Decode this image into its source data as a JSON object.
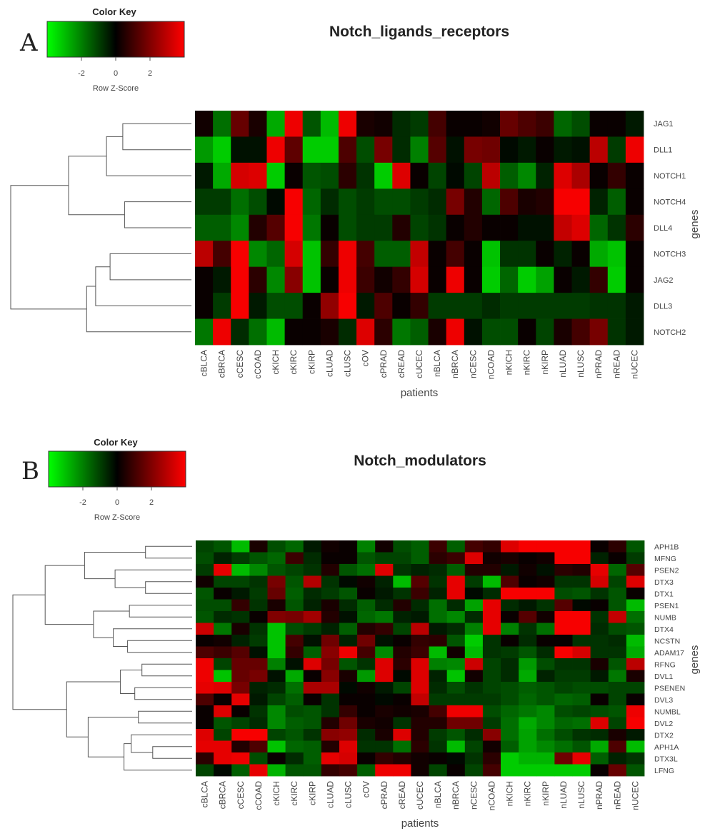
{
  "figure": {
    "panels": [
      {
        "letter": "A",
        "title": "Notch_ligands_receptors",
        "key": {
          "title": "Color Key",
          "xlabel": "Row Z-Score",
          "ticks": [
            "-2",
            "0",
            "2"
          ]
        },
        "ylabel": "genes",
        "xlabel": "patients"
      },
      {
        "letter": "B",
        "title": "Notch_modulators",
        "key": {
          "title": "Color Key",
          "xlabel": "Row Z-Score",
          "ticks": [
            "-2",
            "0",
            "2"
          ]
        },
        "ylabel": "genes",
        "xlabel": "patients"
      }
    ]
  },
  "colors": {
    "low": "#00ff00",
    "mid": "#000000",
    "high": "#ff0000"
  },
  "chart_data": [
    {
      "type": "heatmap",
      "title": "Notch_ligands_receptors",
      "xlabel": "patients",
      "ylabel": "genes",
      "color_scale": {
        "label": "Row Z-Score",
        "range": [
          -3,
          3
        ],
        "ticks": [
          -2,
          0,
          2
        ],
        "colors": [
          "green",
          "black",
          "red"
        ]
      },
      "columns": [
        "cBLCA",
        "cBRCA",
        "cCESC",
        "cCOAD",
        "cKICH",
        "cKIRC",
        "cKIRP",
        "cLUAD",
        "cLUSC",
        "cOV",
        "cPRAD",
        "cREAD",
        "cUCEC",
        "nBLCA",
        "nBRCA",
        "nCESC",
        "nCOAD",
        "nKICH",
        "nKIRC",
        "nKIRP",
        "nLUAD",
        "nLUSC",
        "nPRAD",
        "nREAD",
        "nUCEC"
      ],
      "rows": [
        "JAG1",
        "DLL1",
        "NOTCH1",
        "NOTCH4",
        "DLL4",
        "NOTCH3",
        "JAG2",
        "DLL3",
        "NOTCH2"
      ],
      "values": [
        [
          0.2,
          -1.3,
          1.2,
          0.3,
          -2.0,
          2.8,
          -1.0,
          -2.2,
          2.8,
          0.3,
          0.2,
          -0.5,
          -0.7,
          0.8,
          0.1,
          0.1,
          0.2,
          1.2,
          0.9,
          0.7,
          -1.2,
          -0.9,
          0.1,
          0.1,
          -0.3
        ],
        [
          -1.8,
          -2.4,
          -0.2,
          -0.2,
          2.8,
          1.1,
          -2.4,
          -2.4,
          0.9,
          -0.9,
          1.4,
          -0.5,
          -1.5,
          1.0,
          -0.2,
          1.4,
          1.3,
          -0.1,
          -0.3,
          0.1,
          -0.3,
          -0.2,
          2.2,
          -0.7,
          2.8
        ],
        [
          -0.3,
          -2.0,
          2.5,
          2.6,
          -2.4,
          0.1,
          -1.0,
          -0.9,
          0.5,
          -0.6,
          -2.4,
          2.6,
          0.1,
          -0.8,
          -0.1,
          -0.8,
          2.2,
          -1.1,
          -1.6,
          -0.4,
          2.6,
          2.0,
          0.1,
          0.6,
          0.1
        ],
        [
          -0.7,
          -0.7,
          -1.3,
          -0.9,
          -0.1,
          2.9,
          -1.2,
          -0.5,
          -0.9,
          -0.7,
          -0.9,
          -0.9,
          -0.7,
          -0.5,
          1.4,
          0.4,
          -1.2,
          0.9,
          0.3,
          0.4,
          2.9,
          2.9,
          -0.4,
          -1.1,
          0.1
        ],
        [
          -1.1,
          -1.1,
          -1.6,
          0.4,
          1.0,
          2.9,
          -1.4,
          0.1,
          -0.9,
          -0.7,
          -0.7,
          0.4,
          -0.8,
          -0.6,
          0.1,
          0.4,
          0.1,
          0.1,
          -0.2,
          -0.2,
          2.3,
          2.6,
          -1.2,
          -0.6,
          0.5
        ],
        [
          2.2,
          0.8,
          2.9,
          -1.6,
          -1.2,
          2.5,
          -2.3,
          0.6,
          2.8,
          0.8,
          -1.1,
          -1.1,
          2.3,
          0.1,
          0.8,
          0.1,
          -2.3,
          -0.6,
          -0.6,
          0.1,
          -0.4,
          0.1,
          -2.0,
          -2.3,
          0.1
        ],
        [
          0.1,
          -0.3,
          2.9,
          0.5,
          -1.6,
          1.6,
          -2.3,
          0.1,
          2.8,
          0.7,
          0.2,
          0.6,
          2.5,
          0.1,
          2.8,
          0.1,
          -2.4,
          -1.2,
          -2.4,
          -1.9,
          0.1,
          -0.3,
          0.6,
          -2.4,
          0.1
        ],
        [
          0.1,
          -0.7,
          2.9,
          -0.3,
          -0.9,
          -0.9,
          0.1,
          1.7,
          2.9,
          -0.3,
          0.9,
          0.1,
          0.6,
          -0.7,
          -0.7,
          -0.7,
          -0.5,
          -0.7,
          -0.7,
          -0.7,
          -0.7,
          -0.7,
          -0.6,
          -0.6,
          -0.3
        ],
        [
          -1.4,
          2.8,
          -0.5,
          -1.3,
          -2.2,
          0.1,
          0.1,
          0.3,
          -0.5,
          2.6,
          0.5,
          -1.4,
          -1.1,
          0.3,
          2.8,
          -0.2,
          -0.9,
          -0.9,
          0.1,
          -0.8,
          0.3,
          0.8,
          1.4,
          -0.6,
          -0.3
        ]
      ],
      "dendrogram": {
        "leaf_order": [
          "JAG1",
          "DLL1",
          "NOTCH1",
          "NOTCH4",
          "DLL4",
          "NOTCH3",
          "JAG2",
          "DLL3",
          "NOTCH2"
        ],
        "merges": [
          [
            0,
            1,
            0.38
          ],
          [
            2,
            9,
            0.47
          ],
          [
            3,
            4,
            0.37
          ],
          [
            5,
            6,
            0.45
          ],
          [
            12,
            7,
            0.53
          ],
          [
            13,
            8,
            0.58
          ],
          [
            10,
            11,
            0.68
          ],
          [
            14,
            15,
            1.0
          ]
        ]
      }
    },
    {
      "type": "heatmap",
      "title": "Notch_modulators",
      "xlabel": "patients",
      "ylabel": "genes",
      "color_scale": {
        "label": "Row Z-Score",
        "range": [
          -3,
          3
        ],
        "ticks": [
          -2,
          0,
          2
        ],
        "colors": [
          "green",
          "black",
          "red"
        ]
      },
      "columns": [
        "cBLCA",
        "cBRCA",
        "cCESC",
        "cCOAD",
        "cKICH",
        "cKIRC",
        "cKIRP",
        "cLUAD",
        "cLUSC",
        "cOV",
        "cPRAD",
        "cREAD",
        "cUCEC",
        "nBLCA",
        "nBRCA",
        "nCESC",
        "nCOAD",
        "nKICH",
        "nKIRC",
        "nKIRP",
        "nLUAD",
        "nLUSC",
        "nPRAD",
        "nREAD",
        "nUCEC"
      ],
      "rows": [
        "APH1B",
        "MFNG",
        "PSEN2",
        "DTX3",
        "DTX1",
        "PSEN1",
        "NUMB",
        "DTX4",
        "NCSTN",
        "ADAM17",
        "RFNG",
        "DVL1",
        "PSENEN",
        "DVL3",
        "NUMBL",
        "DVL2",
        "DTX2",
        "APH1A",
        "DTX3L",
        "LFNG"
      ],
      "values": [
        [
          -0.8,
          -1.0,
          -2.2,
          0.3,
          -0.9,
          -1.2,
          -0.3,
          0.2,
          0.1,
          -1.5,
          0.2,
          -0.9,
          -1.1,
          0.7,
          -1.1,
          0.8,
          0.6,
          2.6,
          2.9,
          2.9,
          2.9,
          2.9,
          0.1,
          0.5,
          -1.0
        ],
        [
          -0.9,
          -0.4,
          -0.7,
          -1.0,
          -1.2,
          0.7,
          -0.5,
          0.1,
          0.1,
          -1.0,
          -0.8,
          -0.8,
          -1.1,
          0.5,
          0.7,
          2.6,
          0.2,
          0.3,
          0.1,
          0.2,
          2.9,
          2.9,
          -0.4,
          0.1,
          -0.7
        ],
        [
          -0.7,
          2.7,
          -2.2,
          -1.6,
          -1.0,
          -0.8,
          -0.6,
          0.4,
          -1.0,
          -1.3,
          2.6,
          -0.6,
          -0.4,
          -0.5,
          -1.1,
          0.4,
          0.4,
          -0.3,
          0.2,
          -0.2,
          0.5,
          0.4,
          2.7,
          -1.2,
          1.0
        ],
        [
          0.2,
          -0.8,
          -0.8,
          -0.6,
          1.4,
          -1.0,
          2.1,
          -0.6,
          -0.1,
          0.2,
          -0.4,
          -2.2,
          1.0,
          -0.6,
          2.7,
          -0.7,
          -2.2,
          0.9,
          0.1,
          0.2,
          -0.6,
          -0.6,
          2.5,
          -0.8,
          2.6
        ],
        [
          -1.0,
          0.1,
          -0.3,
          -0.7,
          1.2,
          -1.1,
          -0.5,
          -0.7,
          -1.0,
          0.1,
          -0.3,
          -0.6,
          0.7,
          -0.4,
          2.7,
          -0.1,
          -0.5,
          2.9,
          2.9,
          2.9,
          -0.9,
          -1.0,
          -0.6,
          -1.0,
          0.1
        ],
        [
          -0.9,
          -0.9,
          0.6,
          -0.6,
          0.3,
          -1.0,
          -0.4,
          0.3,
          -0.5,
          -1.1,
          -0.5,
          0.4,
          -0.5,
          -1.3,
          -0.5,
          -1.9,
          2.7,
          -0.5,
          -0.3,
          -0.6,
          1.0,
          -0.1,
          0.1,
          -1.0,
          -2.2
        ],
        [
          -1.0,
          -0.5,
          -0.6,
          0.1,
          1.5,
          1.4,
          1.9,
          0.4,
          -0.2,
          -1.2,
          -1.4,
          -0.4,
          -0.3,
          -1.3,
          -1.6,
          -0.5,
          2.7,
          0.1,
          1.0,
          0.2,
          2.9,
          2.9,
          -0.6,
          2.3,
          -1.3
        ],
        [
          2.4,
          -1.4,
          0.3,
          -0.6,
          -2.3,
          -0.9,
          -0.7,
          -0.4,
          -1.1,
          0.4,
          0.6,
          -0.8,
          2.2,
          -0.3,
          -0.5,
          -1.5,
          2.7,
          -1.5,
          -0.6,
          -1.3,
          2.9,
          2.9,
          -0.5,
          -0.9,
          -1.0
        ],
        [
          0.1,
          0.2,
          -0.4,
          -0.7,
          -2.3,
          0.8,
          -0.2,
          1.3,
          -0.4,
          1.3,
          -0.2,
          0.1,
          0.6,
          0.5,
          -1.0,
          -2.4,
          -0.6,
          0.1,
          -0.5,
          0.1,
          0.1,
          -0.6,
          -0.6,
          -0.5,
          -2.2
        ],
        [
          0.9,
          0.7,
          1.0,
          -0.2,
          -2.3,
          0.6,
          -1.1,
          1.6,
          2.8,
          0.8,
          -1.6,
          0.4,
          0.7,
          -2.2,
          0.2,
          -2.2,
          -0.6,
          -0.7,
          -1.0,
          -0.5,
          2.9,
          2.5,
          -0.6,
          -0.6,
          -2.0
        ],
        [
          2.8,
          -0.8,
          1.2,
          1.2,
          -1.5,
          -0.2,
          2.6,
          1.4,
          -1.0,
          -0.6,
          2.6,
          0.5,
          2.6,
          -1.5,
          -1.6,
          2.4,
          -0.8,
          -0.5,
          -1.8,
          -0.9,
          -0.6,
          -0.6,
          0.3,
          -1.0,
          2.2
        ],
        [
          2.8,
          -2.3,
          1.2,
          1.4,
          -0.2,
          -2.0,
          0.1,
          1.6,
          0.3,
          -1.8,
          2.6,
          -0.1,
          2.6,
          -0.4,
          -2.3,
          0.2,
          -0.8,
          -0.5,
          -2.0,
          -0.4,
          -0.7,
          -0.7,
          -0.3,
          -1.4,
          0.3
        ],
        [
          2.7,
          2.6,
          1.4,
          -0.4,
          -0.5,
          -1.3,
          2.0,
          2.0,
          -0.1,
          0.2,
          -0.3,
          -0.8,
          2.6,
          -0.5,
          -0.9,
          -0.6,
          -0.8,
          -0.9,
          -1.1,
          -1.0,
          -0.8,
          -0.9,
          -0.9,
          -0.8,
          -0.8
        ],
        [
          0.9,
          0.1,
          2.7,
          -0.3,
          -0.8,
          -1.1,
          0.1,
          -0.6,
          0.1,
          0.1,
          -0.1,
          0.1,
          2.3,
          -0.7,
          -0.7,
          -0.7,
          -0.7,
          -0.9,
          -1.2,
          -1.0,
          -1.2,
          -1.1,
          0.1,
          -0.8,
          0.1
        ],
        [
          0.1,
          2.6,
          0.1,
          -0.6,
          -1.6,
          -0.9,
          -1.0,
          -0.6,
          0.6,
          0.1,
          0.3,
          0.2,
          0.3,
          0.8,
          2.8,
          2.8,
          -0.9,
          -1.2,
          -1.4,
          -1.6,
          -0.9,
          -0.8,
          -0.9,
          -1.0,
          2.8
        ],
        [
          0.1,
          -1.0,
          -0.8,
          -0.5,
          -1.6,
          -1.1,
          -1.0,
          0.4,
          1.3,
          0.3,
          0.2,
          -0.6,
          0.4,
          0.4,
          1.3,
          1.3,
          -0.7,
          -1.3,
          -2.0,
          -1.6,
          -1.2,
          -1.3,
          2.6,
          -0.8,
          2.9
        ],
        [
          2.6,
          -0.8,
          2.9,
          2.9,
          -0.8,
          -1.0,
          -0.6,
          1.6,
          1.7,
          -0.5,
          0.3,
          2.6,
          0.4,
          -0.7,
          -1.0,
          -0.5,
          1.6,
          -1.3,
          -1.9,
          -1.3,
          -0.9,
          -0.6,
          -0.5,
          0.3,
          -0.3
        ],
        [
          2.7,
          2.7,
          0.4,
          0.9,
          -2.3,
          -1.2,
          -1.1,
          0.4,
          2.6,
          -0.6,
          -0.6,
          -1.3,
          0.5,
          -0.6,
          -2.2,
          -0.8,
          0.2,
          -1.1,
          -1.9,
          -1.6,
          -1.3,
          -1.0,
          -2.0,
          0.9,
          -2.2
        ],
        [
          0.5,
          2.7,
          2.8,
          -0.9,
          0.1,
          -0.5,
          -1.1,
          2.7,
          2.5,
          0.1,
          0.6,
          0.4,
          0.2,
          0.1,
          -0.1,
          -0.6,
          0.5,
          -2.4,
          -2.1,
          -2.1,
          1.3,
          2.7,
          -1.1,
          -0.4,
          -0.6
        ],
        [
          -0.8,
          -0.1,
          -1.1,
          2.7,
          -2.1,
          -1.0,
          -1.0,
          0.6,
          0.8,
          -1.1,
          2.8,
          2.8,
          0.2,
          -0.8,
          0.1,
          -0.8,
          0.8,
          -2.4,
          -2.4,
          -2.4,
          -2.4,
          -2.4,
          0.1,
          1.2,
          -1.0
        ]
      ],
      "dendrogram": {
        "leaf_order": [
          "APH1B",
          "MFNG",
          "PSEN2",
          "DTX3",
          "DTX1",
          "PSEN1",
          "NUMB",
          "DTX4",
          "NCSTN",
          "ADAM17",
          "RFNG",
          "DVL1",
          "PSENEN",
          "DVL3",
          "NUMBL",
          "DVL2",
          "DTX2",
          "APH1A",
          "DTX3L",
          "LFNG"
        ],
        "merges": [
          [
            0,
            1,
            0.26
          ],
          [
            3,
            4,
            0.26
          ],
          [
            2,
            21,
            0.43
          ],
          [
            20,
            22,
            0.6
          ],
          [
            5,
            6,
            0.35
          ],
          [
            8,
            9,
            0.36
          ],
          [
            7,
            25,
            0.44
          ],
          [
            24,
            26,
            0.55
          ],
          [
            23,
            27,
            0.82
          ],
          [
            10,
            11,
            0.28
          ],
          [
            12,
            13,
            0.32
          ],
          [
            29,
            30,
            0.4
          ],
          [
            14,
            15,
            0.3
          ],
          [
            17,
            18,
            0.22
          ],
          [
            16,
            33,
            0.34
          ],
          [
            34,
            19,
            0.38
          ],
          [
            32,
            35,
            0.58
          ],
          [
            31,
            36,
            0.7
          ],
          [
            28,
            37,
            1.0
          ]
        ]
      }
    }
  ]
}
